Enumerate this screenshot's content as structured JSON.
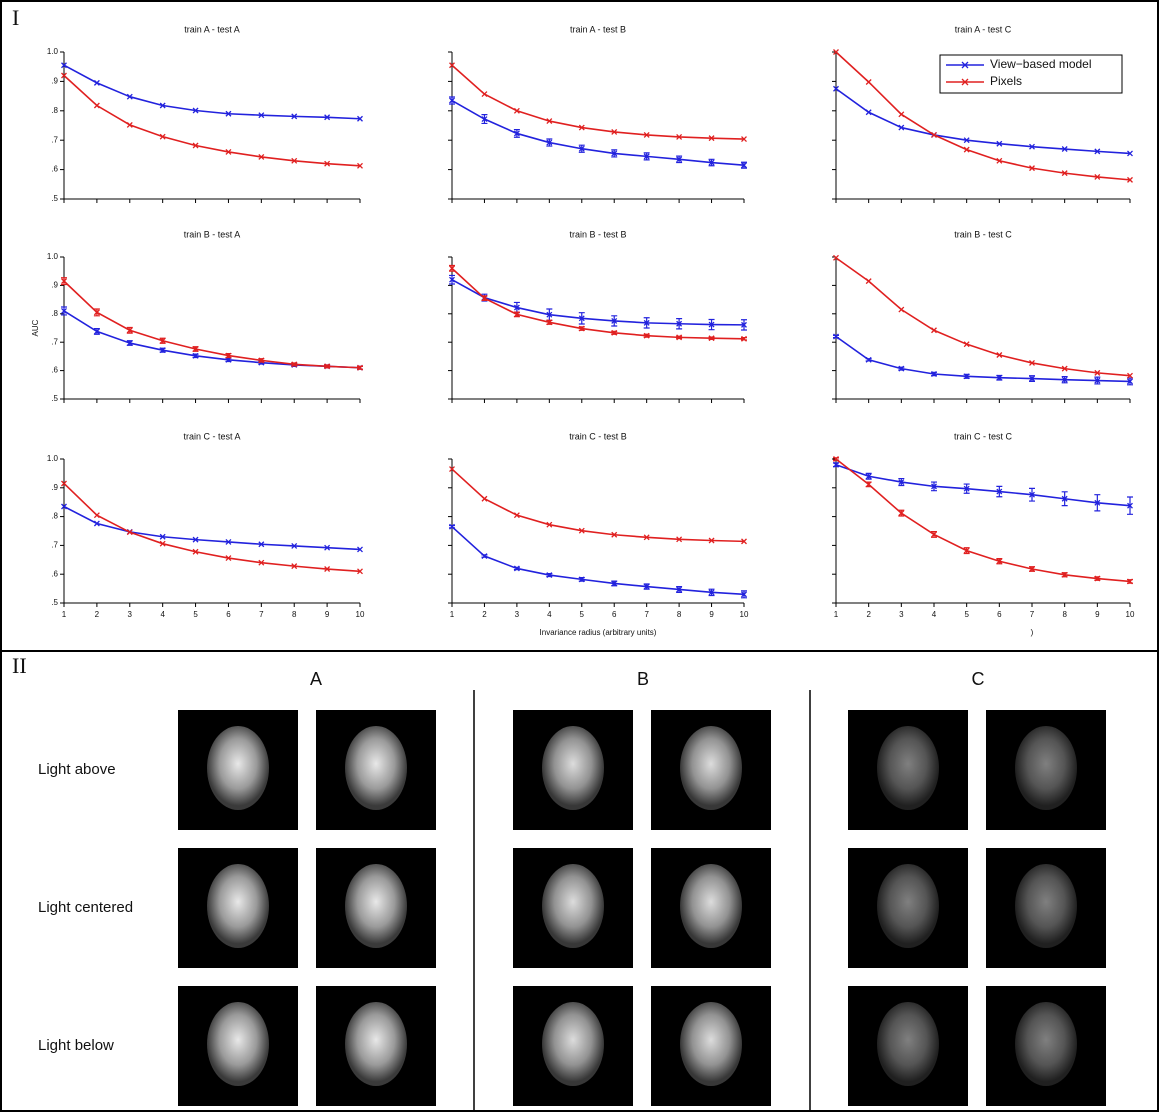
{
  "panel_I": {
    "label": "I"
  },
  "panel_II": {
    "label": "II",
    "columns": [
      "A",
      "B",
      "C"
    ],
    "rows": [
      "Light above",
      "Light centered",
      "Light below"
    ]
  },
  "chart_data": [
    {
      "type": "line",
      "title": "train A - test A",
      "x": [
        1,
        2,
        3,
        4,
        5,
        6,
        7,
        8,
        9,
        10
      ],
      "xlim": [
        1,
        10
      ],
      "ylim": [
        0.5,
        1.0
      ],
      "xticks": [
        1,
        2,
        3,
        4,
        5,
        6,
        7,
        8,
        9,
        10
      ],
      "yticks": [
        {
          "value": 0.5,
          "label": ".5"
        },
        {
          "value": 0.6,
          "label": ".6"
        },
        {
          "value": 0.7,
          "label": ".7"
        },
        {
          "value": 0.8,
          "label": ".8"
        },
        {
          "value": 0.9,
          "label": ".9"
        },
        {
          "value": 1.0,
          "label": "1.0"
        }
      ],
      "xtick_labels": false,
      "ytick_labels": true,
      "series": [
        {
          "color": "#2222dd",
          "values": [
            0.955,
            0.895,
            0.848,
            0.818,
            0.801,
            0.79,
            0.785,
            0.781,
            0.778,
            0.773
          ]
        },
        {
          "color": "#e02020",
          "values": [
            0.92,
            0.818,
            0.752,
            0.712,
            0.682,
            0.66,
            0.643,
            0.63,
            0.62,
            0.613
          ]
        }
      ]
    },
    {
      "type": "line",
      "title": "train A - test B",
      "x": [
        1,
        2,
        3,
        4,
        5,
        6,
        7,
        8,
        9,
        10
      ],
      "xlim": [
        1,
        10
      ],
      "ylim": [
        0.5,
        1.0
      ],
      "xticks": [
        1,
        2,
        3,
        4,
        5,
        6,
        7,
        8,
        9,
        10
      ],
      "yticks": [
        0.5,
        0.6,
        0.7,
        0.8,
        0.9,
        1.0
      ],
      "xtick_labels": false,
      "ytick_labels": false,
      "series": [
        {
          "color": "#2222dd",
          "values": [
            0.835,
            0.772,
            0.723,
            0.692,
            0.671,
            0.655,
            0.645,
            0.635,
            0.624,
            0.615
          ],
          "errors": [
            0.012,
            0.015,
            0.013,
            0.012,
            0.012,
            0.012,
            0.012,
            0.011,
            0.011,
            0.01
          ]
        },
        {
          "color": "#e02020",
          "values": [
            0.955,
            0.857,
            0.8,
            0.765,
            0.743,
            0.728,
            0.718,
            0.711,
            0.707,
            0.704
          ]
        }
      ]
    },
    {
      "type": "line",
      "title": "train A - test C",
      "x": [
        1,
        2,
        3,
        4,
        5,
        6,
        7,
        8,
        9,
        10
      ],
      "xlim": [
        1,
        10
      ],
      "ylim": [
        0.5,
        1.0
      ],
      "xticks": [
        1,
        2,
        3,
        4,
        5,
        6,
        7,
        8,
        9,
        10
      ],
      "yticks": [
        0.5,
        0.6,
        0.7,
        0.8,
        0.9,
        1.0
      ],
      "xtick_labels": false,
      "ytick_labels": false,
      "legend": "upper right",
      "series": [
        {
          "name": "View−based model",
          "color": "#2222dd",
          "values": [
            0.875,
            0.795,
            0.743,
            0.718,
            0.7,
            0.688,
            0.678,
            0.67,
            0.662,
            0.655
          ]
        },
        {
          "name": "Pixels",
          "color": "#e02020",
          "values": [
            1.0,
            0.898,
            0.788,
            0.718,
            0.668,
            0.63,
            0.605,
            0.588,
            0.575,
            0.565
          ]
        }
      ]
    },
    {
      "type": "line",
      "title": "train B - test A",
      "ylabel": "AUC",
      "x": [
        1,
        2,
        3,
        4,
        5,
        6,
        7,
        8,
        9,
        10
      ],
      "xlim": [
        1,
        10
      ],
      "ylim": [
        0.5,
        1.0
      ],
      "xticks": [
        1,
        2,
        3,
        4,
        5,
        6,
        7,
        8,
        9,
        10
      ],
      "yticks": [
        {
          "value": 0.5,
          "label": ".5"
        },
        {
          "value": 0.6,
          "label": ".6"
        },
        {
          "value": 0.7,
          "label": ".7"
        },
        {
          "value": 0.8,
          "label": ".8"
        },
        {
          "value": 0.9,
          "label": ".9"
        },
        {
          "value": 1.0,
          "label": "1.0"
        }
      ],
      "xtick_labels": false,
      "ytick_labels": true,
      "series": [
        {
          "color": "#2222dd",
          "values": [
            0.81,
            0.738,
            0.697,
            0.672,
            0.652,
            0.638,
            0.628,
            0.62,
            0.615,
            0.61
          ],
          "errors": [
            0.014,
            0.01,
            0.008,
            0.007,
            0.006,
            0.006,
            0.005,
            0.005,
            0.005,
            0.005
          ]
        },
        {
          "color": "#e02020",
          "values": [
            0.915,
            0.805,
            0.742,
            0.705,
            0.676,
            0.653,
            0.636,
            0.622,
            0.615,
            0.61
          ],
          "errors": [
            0.012,
            0.012,
            0.01,
            0.009,
            0.008,
            0.007,
            0.006,
            0.005,
            0.005,
            0.005
          ]
        }
      ]
    },
    {
      "type": "line",
      "title": "train B - test B",
      "x": [
        1,
        2,
        3,
        4,
        5,
        6,
        7,
        8,
        9,
        10
      ],
      "xlim": [
        1,
        10
      ],
      "ylim": [
        0.5,
        1.0
      ],
      "xticks": [
        1,
        2,
        3,
        4,
        5,
        6,
        7,
        8,
        9,
        10
      ],
      "yticks": [
        0.5,
        0.6,
        0.7,
        0.8,
        0.9,
        1.0
      ],
      "xtick_labels": false,
      "ytick_labels": false,
      "series": [
        {
          "color": "#2222dd",
          "values": [
            0.92,
            0.857,
            0.822,
            0.797,
            0.784,
            0.775,
            0.768,
            0.765,
            0.762,
            0.761
          ],
          "errors": [
            0.015,
            0.012,
            0.018,
            0.02,
            0.02,
            0.018,
            0.018,
            0.018,
            0.018,
            0.018
          ]
        },
        {
          "color": "#e02020",
          "values": [
            0.96,
            0.855,
            0.798,
            0.77,
            0.748,
            0.733,
            0.723,
            0.717,
            0.714,
            0.712
          ],
          "errors": [
            0.01,
            0.008,
            0.008,
            0.007,
            0.006,
            0.005,
            0.005,
            0.004,
            0.004,
            0.004
          ]
        }
      ]
    },
    {
      "type": "line",
      "title": "train B - test C",
      "x": [
        1,
        2,
        3,
        4,
        5,
        6,
        7,
        8,
        9,
        10
      ],
      "xlim": [
        1,
        10
      ],
      "ylim": [
        0.5,
        1.0
      ],
      "xticks": [
        1,
        2,
        3,
        4,
        5,
        6,
        7,
        8,
        9,
        10
      ],
      "yticks": [
        0.5,
        0.6,
        0.7,
        0.8,
        0.9,
        1.0
      ],
      "xtick_labels": false,
      "ytick_labels": false,
      "series": [
        {
          "color": "#2222dd",
          "values": [
            0.72,
            0.638,
            0.607,
            0.588,
            0.58,
            0.575,
            0.572,
            0.568,
            0.565,
            0.562
          ],
          "errors": [
            0.004,
            0.004,
            0.005,
            0.006,
            0.007,
            0.008,
            0.01,
            0.011,
            0.012,
            0.012
          ]
        },
        {
          "color": "#e02020",
          "values": [
            0.997,
            0.915,
            0.815,
            0.742,
            0.693,
            0.655,
            0.627,
            0.607,
            0.592,
            0.582
          ]
        }
      ]
    },
    {
      "type": "line",
      "title": "train C - test A",
      "x": [
        1,
        2,
        3,
        4,
        5,
        6,
        7,
        8,
        9,
        10
      ],
      "xlim": [
        1,
        10
      ],
      "ylim": [
        0.5,
        1.0
      ],
      "xticks": [
        1,
        2,
        3,
        4,
        5,
        6,
        7,
        8,
        9,
        10
      ],
      "yticks": [
        {
          "value": 0.5,
          "label": ".5"
        },
        {
          "value": 0.6,
          "label": ".6"
        },
        {
          "value": 0.7,
          "label": ".7"
        },
        {
          "value": 0.8,
          "label": ".8"
        },
        {
          "value": 0.9,
          "label": ".9"
        },
        {
          "value": 1.0,
          "label": "1.0"
        }
      ],
      "xtick_labels": true,
      "ytick_labels": true,
      "series": [
        {
          "color": "#2222dd",
          "values": [
            0.835,
            0.776,
            0.747,
            0.73,
            0.72,
            0.712,
            0.704,
            0.698,
            0.692,
            0.686
          ]
        },
        {
          "color": "#e02020",
          "values": [
            0.915,
            0.805,
            0.746,
            0.706,
            0.678,
            0.656,
            0.64,
            0.628,
            0.618,
            0.61
          ]
        }
      ]
    },
    {
      "type": "line",
      "title": "train C - test B",
      "xlabel": "Invariance radius (arbitrary units)",
      "x": [
        1,
        2,
        3,
        4,
        5,
        6,
        7,
        8,
        9,
        10
      ],
      "xlim": [
        1,
        10
      ],
      "ylim": [
        0.5,
        1.0
      ],
      "xticks": [
        1,
        2,
        3,
        4,
        5,
        6,
        7,
        8,
        9,
        10
      ],
      "yticks": [
        0.5,
        0.6,
        0.7,
        0.8,
        0.9,
        1.0
      ],
      "xtick_labels": true,
      "ytick_labels": false,
      "series": [
        {
          "color": "#2222dd",
          "values": [
            0.765,
            0.663,
            0.62,
            0.597,
            0.582,
            0.568,
            0.557,
            0.547,
            0.537,
            0.53
          ],
          "errors": [
            0.004,
            0.004,
            0.004,
            0.005,
            0.006,
            0.008,
            0.009,
            0.01,
            0.011,
            0.012
          ]
        },
        {
          "color": "#e02020",
          "values": [
            0.965,
            0.862,
            0.805,
            0.772,
            0.751,
            0.737,
            0.728,
            0.721,
            0.717,
            0.714
          ]
        }
      ]
    },
    {
      "type": "line",
      "title": "train C - test C",
      "annotation": ")",
      "x": [
        1,
        2,
        3,
        4,
        5,
        6,
        7,
        8,
        9,
        10
      ],
      "xlim": [
        1,
        10
      ],
      "ylim": [
        0.5,
        1.0
      ],
      "xticks": [
        1,
        2,
        3,
        4,
        5,
        6,
        7,
        8,
        9,
        10
      ],
      "yticks": [
        0.5,
        0.6,
        0.7,
        0.8,
        0.9,
        1.0
      ],
      "xtick_labels": true,
      "ytick_labels": false,
      "series": [
        {
          "color": "#2222dd",
          "values": [
            0.98,
            0.94,
            0.92,
            0.905,
            0.897,
            0.887,
            0.876,
            0.862,
            0.848,
            0.838
          ],
          "errors": [
            0.006,
            0.01,
            0.012,
            0.015,
            0.016,
            0.018,
            0.022,
            0.024,
            0.028,
            0.03
          ]
        },
        {
          "color": "#e02020",
          "values": [
            1.0,
            0.912,
            0.812,
            0.738,
            0.682,
            0.645,
            0.618,
            0.598,
            0.585,
            0.575
          ],
          "errors": [
            0.004,
            0.008,
            0.01,
            0.01,
            0.01,
            0.009,
            0.008,
            0.007,
            0.006,
            0.006
          ]
        }
      ]
    }
  ]
}
